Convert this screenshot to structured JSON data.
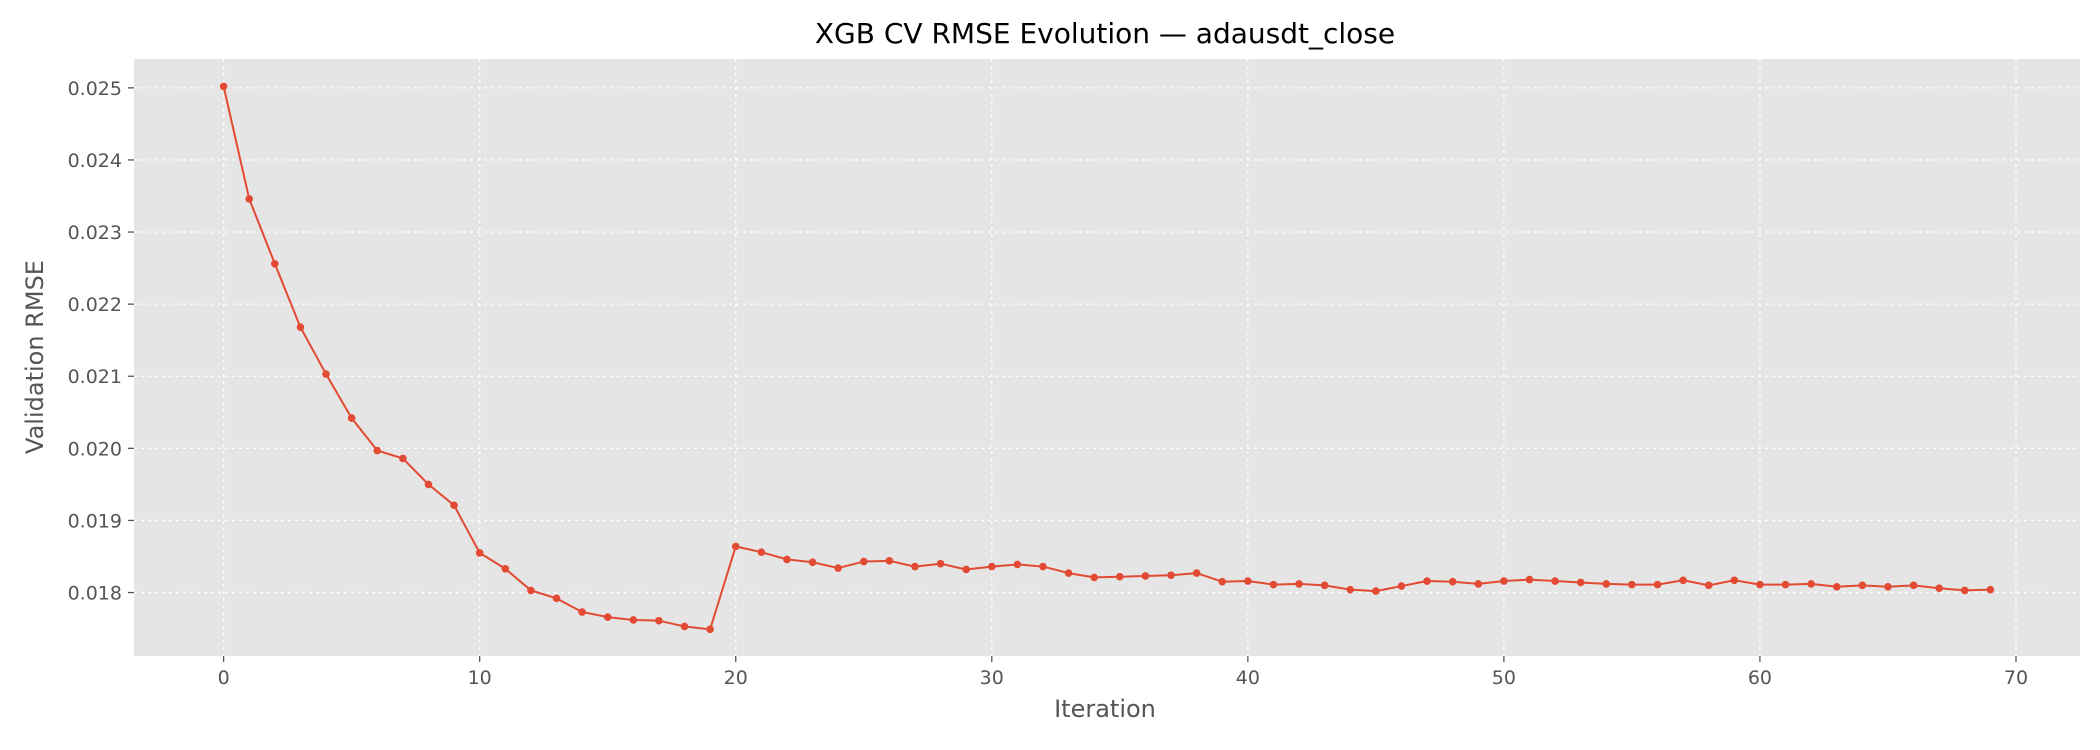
{
  "chart_data": {
    "type": "line",
    "title": "XGB CV RMSE Evolution — adausdt_close",
    "xlabel": "Iteration",
    "ylabel": "Validation RMSE",
    "xlim": [
      -3.5,
      72.5
    ],
    "ylim": [
      0.01712,
      0.0254
    ],
    "grid": true,
    "colors": {
      "background": "#e5e5e5",
      "line": "#e24a33"
    },
    "x_ticks": [
      0,
      10,
      20,
      30,
      40,
      50,
      60,
      70
    ],
    "x_tick_labels": [
      "0",
      "10",
      "20",
      "30",
      "40",
      "50",
      "60",
      "70"
    ],
    "y_ticks": [
      0.018,
      0.019,
      0.02,
      0.021,
      0.022,
      0.023,
      0.024,
      0.025
    ],
    "y_tick_labels": [
      "0.018",
      "0.019",
      "0.020",
      "0.021",
      "0.022",
      "0.023",
      "0.024",
      "0.025"
    ],
    "series": [
      {
        "x": [
          0,
          1,
          2,
          3,
          4,
          5,
          6,
          7,
          8,
          9,
          10,
          11,
          12,
          13,
          14,
          15,
          16,
          17,
          18,
          19,
          20,
          21,
          22,
          23,
          24,
          25,
          26,
          27,
          28,
          29,
          30,
          31,
          32,
          33,
          34,
          35,
          36,
          37,
          38,
          39,
          40,
          41,
          42,
          43,
          44,
          45,
          46,
          47,
          48,
          49,
          50,
          51,
          52,
          53,
          54,
          55,
          56,
          57,
          58,
          59,
          60,
          61,
          62,
          63,
          64,
          65,
          66,
          67,
          68,
          69
        ],
        "values": [
          0.02502,
          0.02346,
          0.02256,
          0.02168,
          0.02103,
          0.02042,
          0.01997,
          0.01986,
          0.0195,
          0.01921,
          0.01855,
          0.01833,
          0.01803,
          0.01792,
          0.01773,
          0.01766,
          0.01762,
          0.01761,
          0.01753,
          0.01749,
          0.01864,
          0.01856,
          0.01846,
          0.01842,
          0.01834,
          0.01843,
          0.01844,
          0.01836,
          0.0184,
          0.01832,
          0.01836,
          0.01839,
          0.01836,
          0.01827,
          0.01821,
          0.01822,
          0.01823,
          0.01824,
          0.01827,
          0.01815,
          0.01816,
          0.01811,
          0.01812,
          0.0181,
          0.01804,
          0.01802,
          0.01809,
          0.01816,
          0.01815,
          0.01812,
          0.01816,
          0.01818,
          0.01816,
          0.01814,
          0.01812,
          0.01811,
          0.01811,
          0.01817,
          0.0181,
          0.01817,
          0.01811,
          0.01811,
          0.01812,
          0.01808,
          0.0181,
          0.01808,
          0.0181,
          0.01806,
          0.01803,
          0.01804
        ]
      }
    ]
  }
}
